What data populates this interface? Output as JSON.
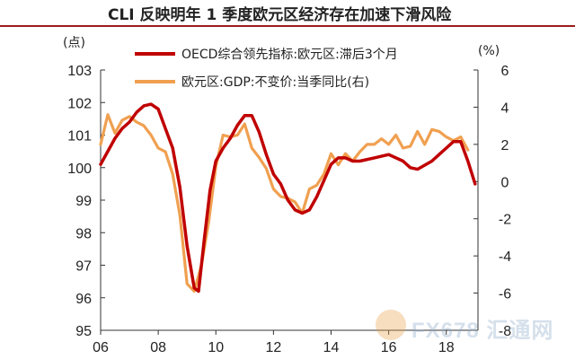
{
  "title": "CLI 反映明年 1 季度欧元区经济存在加速下滑风险",
  "chart_data": {
    "type": "line",
    "left_unit": "(点)",
    "right_unit": "(%)",
    "x_ticks": [
      "06",
      "08",
      "10",
      "12",
      "14",
      "16",
      "18"
    ],
    "x_range": [
      2006.0,
      2019.1
    ],
    "left_axis": {
      "min": 95,
      "max": 103,
      "ticks": [
        "95",
        "96",
        "97",
        "98",
        "99",
        "100",
        "101",
        "102",
        "103"
      ]
    },
    "right_axis": {
      "min": -8,
      "max": 6,
      "ticks": [
        "-8",
        "-6",
        "-4",
        "-2",
        "0",
        "2",
        "4",
        "6"
      ]
    },
    "grid": false,
    "legend_position": "top-center",
    "series": [
      {
        "name": "OECD综合领先指标:欧元区:滞后3个月",
        "axis": "left",
        "color": "#c00000",
        "x": [
          2006.0,
          2006.25,
          2006.5,
          2006.75,
          2007.0,
          2007.25,
          2007.5,
          2007.75,
          2008.0,
          2008.25,
          2008.5,
          2008.75,
          2009.0,
          2009.25,
          2009.4,
          2009.6,
          2009.8,
          2010.0,
          2010.25,
          2010.5,
          2010.75,
          2011.0,
          2011.25,
          2011.5,
          2011.75,
          2012.0,
          2012.25,
          2012.5,
          2012.75,
          2013.0,
          2013.25,
          2013.5,
          2013.75,
          2014.0,
          2014.25,
          2014.5,
          2014.75,
          2015.0,
          2015.5,
          2016.0,
          2016.5,
          2016.75,
          2017.0,
          2017.5,
          2017.75,
          2018.0,
          2018.25,
          2018.5,
          2018.75,
          2019.0
        ],
        "values": [
          100.1,
          100.5,
          100.9,
          101.2,
          101.4,
          101.7,
          101.9,
          101.95,
          101.8,
          101.2,
          100.6,
          99.4,
          97.6,
          96.3,
          96.2,
          97.8,
          99.3,
          100.2,
          100.6,
          100.9,
          101.3,
          101.6,
          101.6,
          101.1,
          100.4,
          99.8,
          99.5,
          99.0,
          98.7,
          98.6,
          98.7,
          99.1,
          99.6,
          100.1,
          100.3,
          100.3,
          100.2,
          100.2,
          100.3,
          100.4,
          100.2,
          100.0,
          99.95,
          100.2,
          100.4,
          100.6,
          100.8,
          100.8,
          100.2,
          99.5
        ]
      },
      {
        "name": "欧元区:GDP:不变价:当季同比(右)",
        "axis": "right",
        "color": "#f0a050",
        "x": [
          2006.0,
          2006.25,
          2006.5,
          2006.75,
          2007.0,
          2007.25,
          2007.5,
          2007.75,
          2008.0,
          2008.25,
          2008.5,
          2008.75,
          2009.0,
          2009.25,
          2009.5,
          2009.75,
          2010.0,
          2010.25,
          2010.5,
          2010.75,
          2011.0,
          2011.25,
          2011.5,
          2011.75,
          2012.0,
          2012.25,
          2012.5,
          2012.75,
          2013.0,
          2013.25,
          2013.5,
          2013.75,
          2014.0,
          2014.25,
          2014.5,
          2014.75,
          2015.0,
          2015.25,
          2015.5,
          2015.75,
          2016.0,
          2016.25,
          2016.5,
          2016.75,
          2017.0,
          2017.25,
          2017.5,
          2017.75,
          2018.0,
          2018.25,
          2018.5,
          2018.75
        ],
        "values": [
          2.0,
          3.6,
          2.6,
          3.3,
          3.5,
          3.2,
          3.0,
          2.5,
          1.8,
          1.6,
          0.4,
          -1.8,
          -5.5,
          -5.9,
          -4.5,
          -2.2,
          0.8,
          2.5,
          2.4,
          2.5,
          3.1,
          1.8,
          1.3,
          0.7,
          -0.4,
          -0.8,
          -0.9,
          -1.1,
          -1.7,
          -0.4,
          -0.2,
          0.4,
          1.5,
          0.9,
          1.5,
          1.1,
          1.6,
          2.0,
          2.0,
          2.3,
          2.0,
          2.5,
          1.8,
          1.9,
          2.7,
          2.0,
          2.8,
          2.7,
          2.4,
          2.2,
          2.4,
          1.7
        ]
      }
    ]
  },
  "watermark": {
    "text": "FX678 汇通网"
  }
}
